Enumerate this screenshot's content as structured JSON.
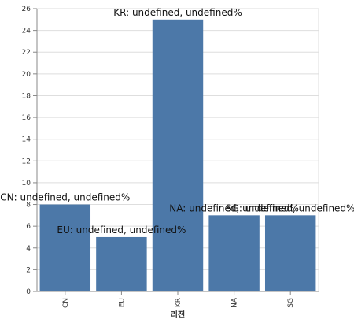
{
  "chart_data": {
    "type": "bar",
    "title": "",
    "xlabel": "리전",
    "ylabel": "",
    "categories": [
      "CN",
      "EU",
      "KR",
      "NA",
      "SG"
    ],
    "values": [
      8,
      5,
      25,
      7,
      7
    ],
    "data_labels": [
      "CN: undefined, undefined%",
      "EU: undefined, undefined%",
      "KR: undefined, undefined%",
      "NA: undefined, undefined%",
      "SG: undefined, undefined%"
    ],
    "ylim": [
      0,
      26
    ],
    "yticks": [
      0,
      2,
      4,
      6,
      8,
      10,
      12,
      14,
      16,
      18,
      20,
      22,
      24,
      26
    ],
    "grid": true,
    "legend": "none",
    "bar_color": "#4c78a8"
  }
}
